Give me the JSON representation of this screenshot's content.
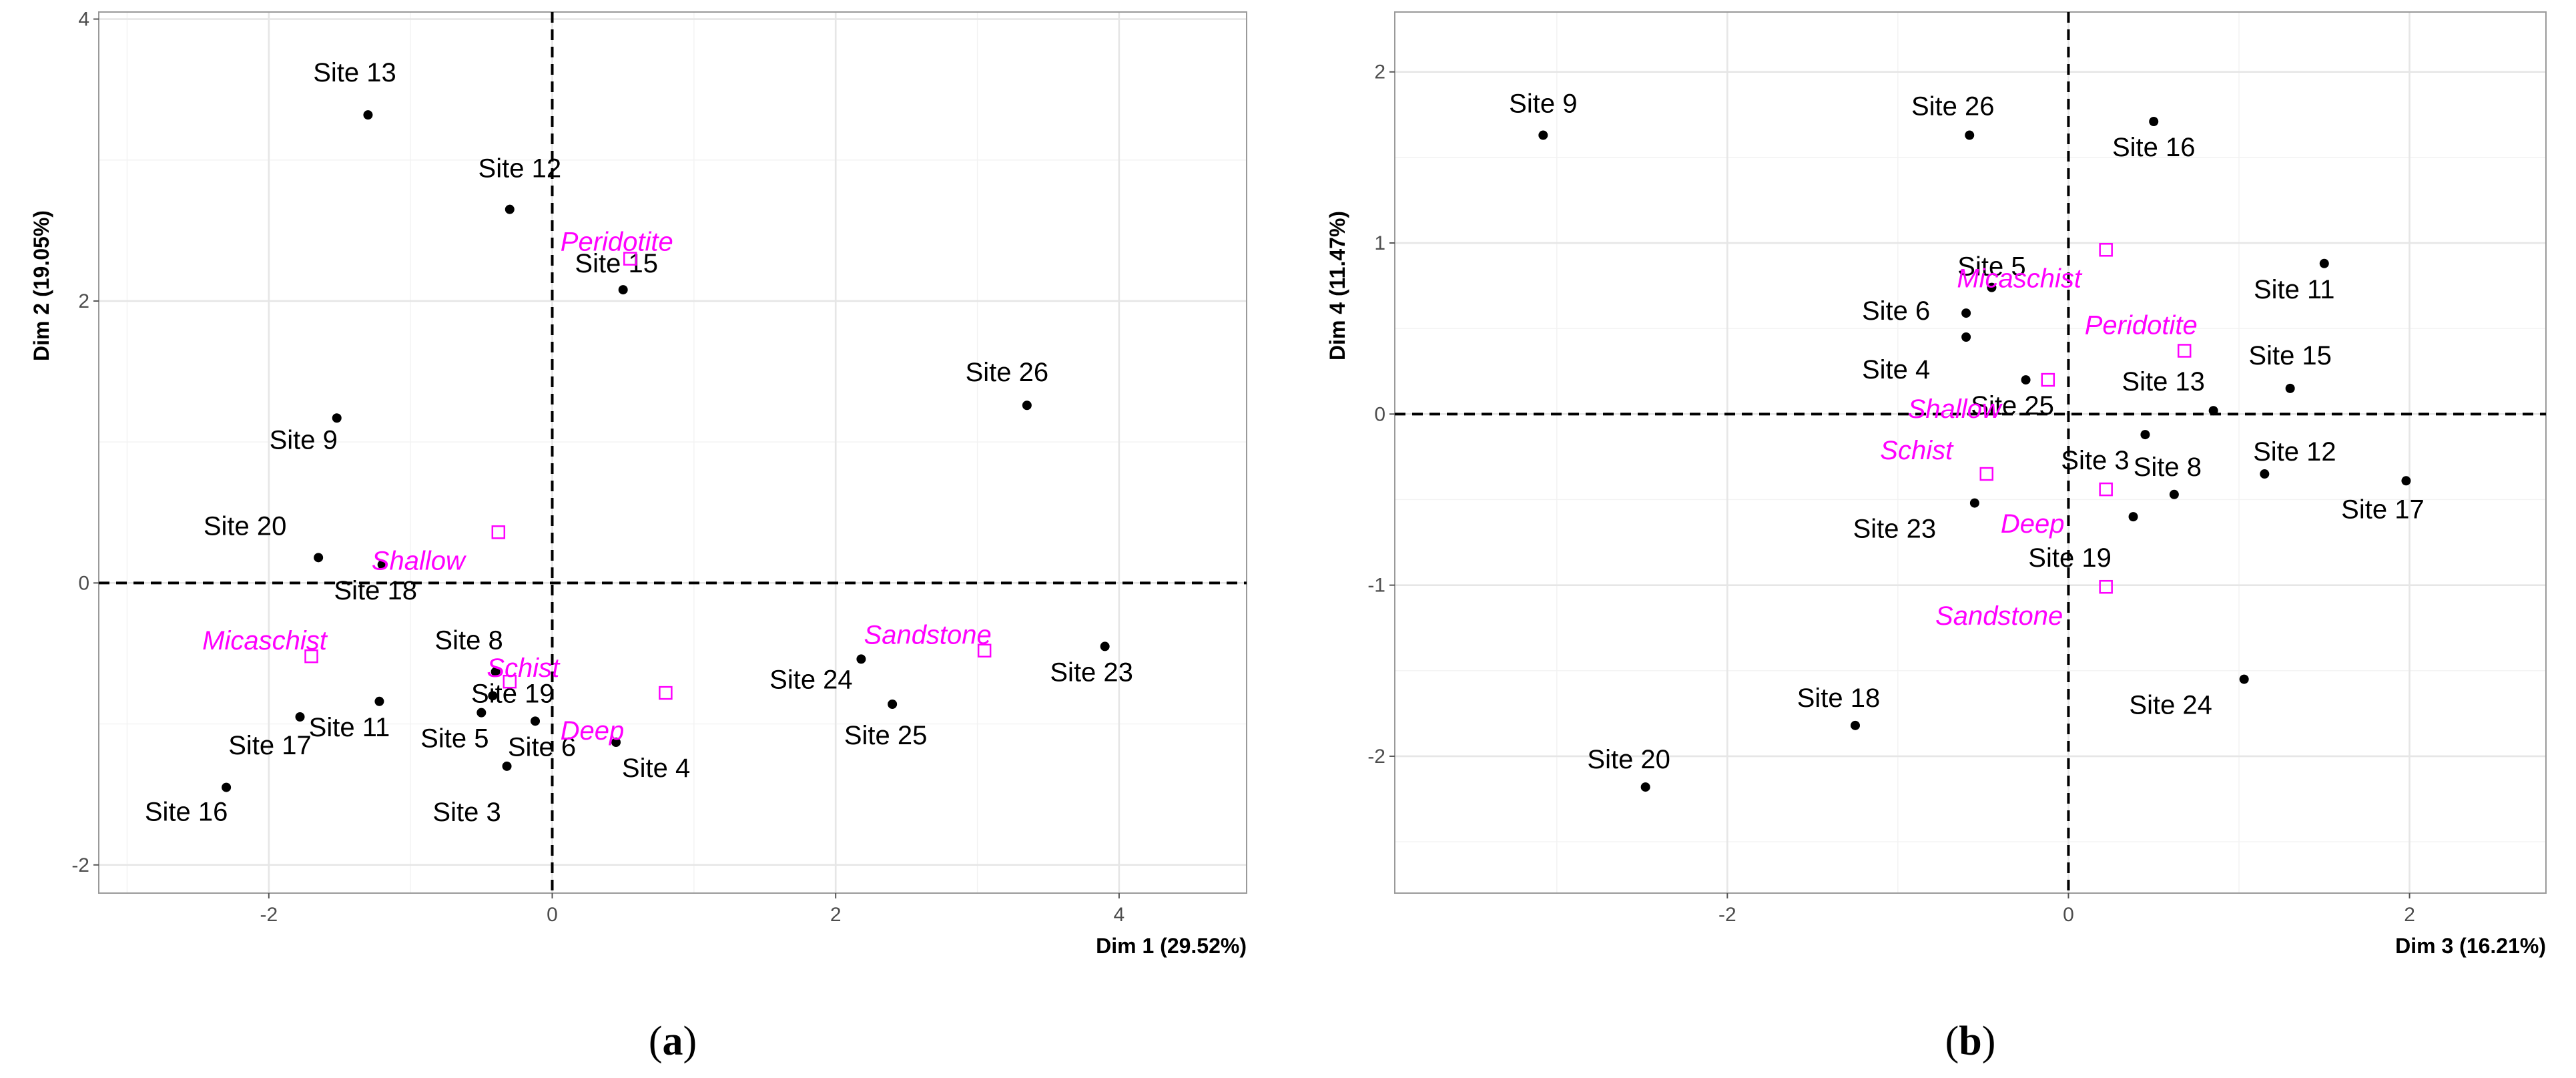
{
  "chart_data": [
    {
      "type": "scatter",
      "caption_letter": "a",
      "xlabel": "Dim 1 (29.52%)",
      "ylabel": "Dim 2 (19.05%)",
      "xlim": [
        -3.2,
        4.9
      ],
      "ylim": [
        -2.2,
        4.05
      ],
      "xticks": [
        -2,
        0,
        2,
        4
      ],
      "yticks": [
        -2,
        0,
        2,
        4
      ],
      "grid": true,
      "points": [
        {
          "label": "Site 13",
          "x": -1.3,
          "y": 3.32
        },
        {
          "label": "Site 12",
          "x": -0.3,
          "y": 2.65
        },
        {
          "label": "Site 15",
          "x": 0.5,
          "y": 2.08
        },
        {
          "label": "Site 26",
          "x": 3.35,
          "y": 1.26
        },
        {
          "label": "Site 9",
          "x": -1.52,
          "y": 1.17
        },
        {
          "label": "Site 20",
          "x": -1.65,
          "y": 0.18
        },
        {
          "label": "Site 18",
          "x": -1.2,
          "y": 0.13
        },
        {
          "label": "Site 8",
          "x": -0.4,
          "y": -0.63
        },
        {
          "label": "Site 11",
          "x": -1.22,
          "y": -0.84
        },
        {
          "label": "Site 19",
          "x": -0.42,
          "y": -0.8
        },
        {
          "label": "Site 17",
          "x": -1.78,
          "y": -0.95
        },
        {
          "label": "Site 5",
          "x": -0.5,
          "y": -0.92
        },
        {
          "label": "Site 6",
          "x": -0.12,
          "y": -0.98
        },
        {
          "label": "Site 4",
          "x": 0.45,
          "y": -1.13
        },
        {
          "label": "Site 3",
          "x": -0.32,
          "y": -1.3
        },
        {
          "label": "Site 16",
          "x": -2.3,
          "y": -1.45
        },
        {
          "label": "Site 24",
          "x": 2.18,
          "y": -0.54
        },
        {
          "label": "Site 25",
          "x": 2.4,
          "y": -0.86
        },
        {
          "label": "Site 23",
          "x": 3.9,
          "y": -0.45
        }
      ],
      "supplementary": [
        {
          "label": "Peridotite",
          "x": 0.55,
          "y": 2.3
        },
        {
          "label": "Shallow",
          "x": -0.38,
          "y": 0.36
        },
        {
          "label": "Micaschist",
          "x": -1.7,
          "y": -0.52
        },
        {
          "label": "Schist",
          "x": -0.3,
          "y": -0.7
        },
        {
          "label": "Deep",
          "x": 0.8,
          "y": -0.78
        },
        {
          "label": "Sandstone",
          "x": 3.05,
          "y": -0.48
        }
      ]
    },
    {
      "type": "scatter",
      "caption_letter": "b",
      "xlabel": "Dim 3 (16.21%)",
      "ylabel": "Dim 4 (11.47%)",
      "xlim": [
        -3.95,
        2.8
      ],
      "ylim": [
        -2.8,
        2.35
      ],
      "xticks": [
        -2,
        0,
        2
      ],
      "yticks": [
        -2,
        -1,
        0,
        1,
        2
      ],
      "grid": true,
      "points": [
        {
          "label": "Site 9",
          "x": -3.08,
          "y": 1.63
        },
        {
          "label": "Site 26",
          "x": -0.58,
          "y": 1.63
        },
        {
          "label": "Site 16",
          "x": 0.5,
          "y": 1.71
        },
        {
          "label": "Site 5",
          "x": -0.45,
          "y": 0.74
        },
        {
          "label": "Site 11",
          "x": 1.5,
          "y": 0.88
        },
        {
          "label": "Site 6",
          "x": -0.6,
          "y": 0.59
        },
        {
          "label": "Site 4",
          "x": -0.6,
          "y": 0.45
        },
        {
          "label": "Site 15",
          "x": 1.3,
          "y": 0.15
        },
        {
          "label": "Site 25",
          "x": -0.25,
          "y": 0.2
        },
        {
          "label": "Site 13",
          "x": 0.85,
          "y": 0.02
        },
        {
          "label": "Site 3",
          "x": 0.45,
          "y": -0.12
        },
        {
          "label": "Site 12",
          "x": 1.15,
          "y": -0.35
        },
        {
          "label": "Site 8",
          "x": 0.62,
          "y": -0.47
        },
        {
          "label": "Site 17",
          "x": 1.98,
          "y": -0.39
        },
        {
          "label": "Site 23",
          "x": -0.55,
          "y": -0.52
        },
        {
          "label": "Site 19",
          "x": 0.38,
          "y": -0.6
        },
        {
          "label": "Site 24",
          "x": 1.03,
          "y": -1.55
        },
        {
          "label": "Site 18",
          "x": -1.25,
          "y": -1.82
        },
        {
          "label": "Site 20",
          "x": -2.48,
          "y": -2.18
        }
      ],
      "supplementary": [
        {
          "label": "Micaschist",
          "x": 0.22,
          "y": 0.96
        },
        {
          "label": "Peridotite",
          "x": 0.68,
          "y": 0.37
        },
        {
          "label": "Shallow",
          "x": -0.12,
          "y": 0.2
        },
        {
          "label": "Schist",
          "x": -0.48,
          "y": -0.35
        },
        {
          "label": "Deep",
          "x": 0.22,
          "y": -0.44
        },
        {
          "label": "Sandstone",
          "x": 0.22,
          "y": -1.01
        }
      ]
    }
  ]
}
